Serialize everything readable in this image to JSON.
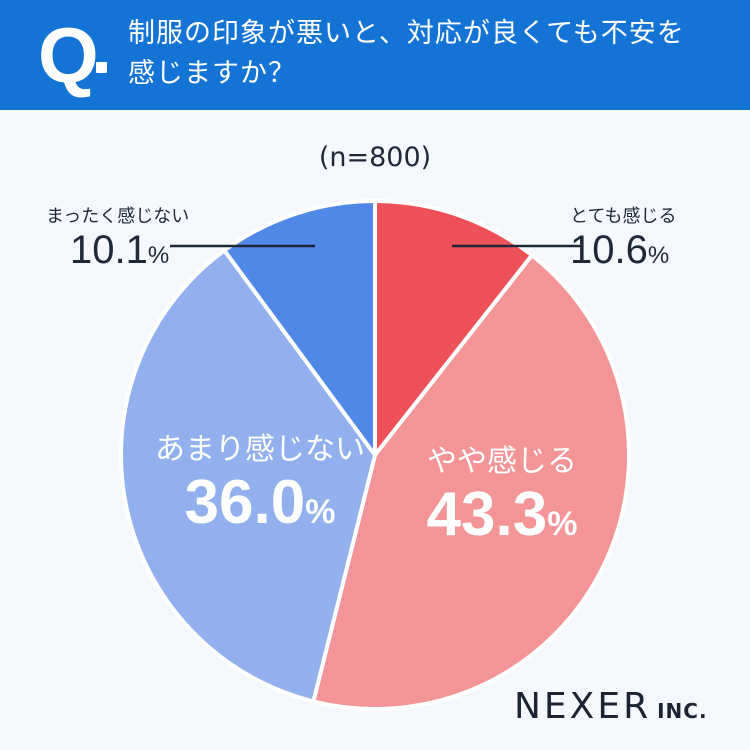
{
  "question": {
    "mark": "Q",
    "line1": "制服の印象が悪いと、対応が良くても不安を",
    "line2": "感じますか？"
  },
  "sample_label": "(n=800)",
  "logo": {
    "main": "NEXER",
    "sub": "INC."
  },
  "colors": {
    "header": "#1474d6",
    "background": "#f4f8fc"
  },
  "chart_data": {
    "type": "pie",
    "title": "制服の印象が悪いと、対応が良くても不安を感じますか？",
    "note": "(n=800)",
    "slices": [
      {
        "label": "とても感じる",
        "value": 10.6,
        "display": "10.6",
        "color": "#ee5058"
      },
      {
        "label": "やや感じる",
        "value": 43.3,
        "display": "43.3",
        "color": "#f39496"
      },
      {
        "label": "あまり感じない",
        "value": 36.0,
        "display": "36.0",
        "color": "#92b0ee"
      },
      {
        "label": "まったく感じない",
        "value": 10.1,
        "display": "10.1",
        "color": "#5088e8"
      }
    ],
    "unit": "%",
    "start": "12 o'clock",
    "direction": "clockwise"
  }
}
